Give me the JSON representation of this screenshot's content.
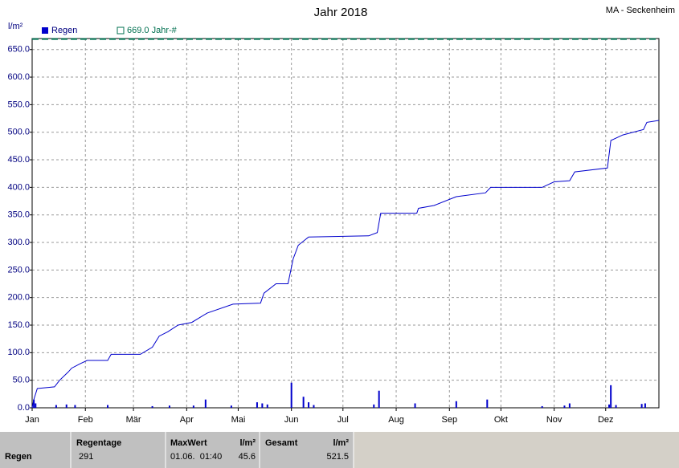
{
  "chart_data": {
    "type": "line",
    "title": "Jahr 2018",
    "station": "MA - Seckenheim",
    "ylabel": "l/m²",
    "xlim": [
      0,
      365
    ],
    "ylim": [
      0,
      670
    ],
    "xticks": [
      {
        "value": 0,
        "label": "Jan"
      },
      {
        "value": 31,
        "label": "Feb"
      },
      {
        "value": 59,
        "label": "Mär"
      },
      {
        "value": 90,
        "label": "Apr"
      },
      {
        "value": 120,
        "label": "Mai"
      },
      {
        "value": 151,
        "label": "Jun"
      },
      {
        "value": 181,
        "label": "Jul"
      },
      {
        "value": 212,
        "label": "Aug"
      },
      {
        "value": 243,
        "label": "Sep"
      },
      {
        "value": 273,
        "label": "Okt"
      },
      {
        "value": 304,
        "label": "Nov"
      },
      {
        "value": 334,
        "label": "Dez"
      }
    ],
    "yticks": [
      {
        "value": 0,
        "label": "0.0"
      },
      {
        "value": 50,
        "label": "50.0"
      },
      {
        "value": 100,
        "label": "100.0"
      },
      {
        "value": 150,
        "label": "150.0"
      },
      {
        "value": 200,
        "label": "200.0"
      },
      {
        "value": 250,
        "label": "250.0"
      },
      {
        "value": 300,
        "label": "300.0"
      },
      {
        "value": 350,
        "label": "350.0"
      },
      {
        "value": 400,
        "label": "400.0"
      },
      {
        "value": 450,
        "label": "450.0"
      },
      {
        "value": 500,
        "label": "500.0"
      },
      {
        "value": 550,
        "label": "550.0"
      },
      {
        "value": 600,
        "label": "600.0"
      },
      {
        "value": 650,
        "label": "650.0"
      }
    ],
    "grid": true,
    "series": [
      {
        "name": "Regen",
        "type": "bar",
        "color": "#0000cc",
        "x": [
          1,
          2,
          14,
          20,
          25,
          44,
          70,
          80,
          94,
          101,
          116,
          131,
          134,
          137,
          151,
          158,
          161,
          164,
          199,
          202,
          223,
          247,
          265,
          297,
          310,
          313,
          336,
          337,
          340,
          355,
          357
        ],
        "values": [
          15,
          8,
          5,
          6,
          5,
          5,
          3,
          4,
          4,
          15,
          4,
          10,
          8,
          6,
          45.6,
          20,
          10,
          5,
          6,
          31,
          8,
          12,
          15,
          3,
          4,
          8,
          6,
          41,
          5,
          7,
          8
        ]
      },
      {
        "type": "line",
        "color": "#0000cc",
        "x": [
          0,
          1,
          3,
          13,
          16,
          21,
          23,
          28,
          32,
          44,
          46,
          63,
          70,
          74,
          79,
          85,
          93,
          102,
          117,
          133,
          135,
          142,
          149,
          152,
          155,
          161,
          196,
          201,
          203,
          224,
          225,
          234,
          247,
          264,
          267,
          297,
          304,
          313,
          316,
          335,
          337,
          344,
          356,
          358,
          365
        ],
        "values": [
          0,
          15,
          35,
          38,
          50,
          65,
          72,
          80,
          86,
          86,
          97,
          97,
          110,
          130,
          138,
          150,
          155,
          172,
          188,
          190,
          208,
          225,
          225,
          270,
          295,
          310,
          312,
          318,
          353,
          353,
          362,
          367,
          383,
          390,
          400,
          400,
          410,
          412,
          428,
          435,
          485,
          495,
          505,
          518,
          521.5
        ]
      }
    ],
    "reference": {
      "name": "669.0 Jahr-#",
      "value": 669,
      "color": "#007050"
    }
  },
  "table": {
    "header": [
      "Regentage",
      "MaxWert",
      "l/m²",
      "Gesamt",
      "l/m²"
    ],
    "rows": [
      [
        "Regen",
        "291",
        "01.06.  01:40",
        "45.6",
        "521.5"
      ]
    ]
  }
}
